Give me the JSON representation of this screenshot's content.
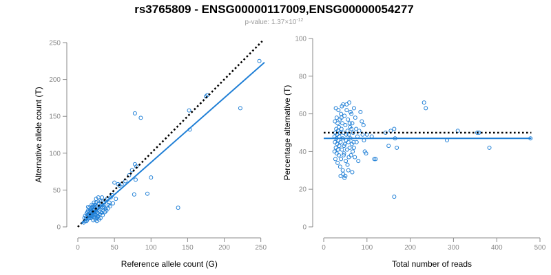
{
  "header": {
    "title": "rs3765809 - ENSG00000117009,ENSG00000054277",
    "subtitle_prefix": "p-value: 1.37×10",
    "subtitle_exponent": "-12"
  },
  "colors": {
    "points": "#1f7fd6",
    "fit_line": "#1f7fd6",
    "reference_line": "#000000",
    "axis": "#8a8a8a"
  },
  "chart_data": [
    {
      "type": "scatter",
      "title": "",
      "xlabel": "Reference allele count (G)",
      "ylabel": "Alternative allele count (T)",
      "xlim": [
        0,
        255
      ],
      "ylim": [
        0,
        250
      ],
      "xticks": [
        0,
        50,
        100,
        150,
        200,
        250
      ],
      "yticks": [
        0,
        50,
        100,
        150,
        200,
        250
      ],
      "grid": false,
      "reference_line": {
        "style": "dotted",
        "slope": 1,
        "intercept": 0,
        "x_range": [
          0,
          252
        ]
      },
      "fit_line": {
        "style": "solid",
        "slope": 0.875,
        "intercept": 0,
        "x_range": [
          5,
          255
        ]
      },
      "points": [
        [
          248,
          225
        ],
        [
          222,
          161
        ],
        [
          177,
          179
        ],
        [
          175,
          177
        ],
        [
          152,
          158
        ],
        [
          153,
          132
        ],
        [
          137,
          26
        ],
        [
          86,
          148
        ],
        [
          78,
          154
        ],
        [
          77,
          44
        ],
        [
          79,
          64
        ],
        [
          78,
          85
        ],
        [
          100,
          67
        ],
        [
          95,
          45
        ],
        [
          74,
          77
        ],
        [
          80,
          82
        ],
        [
          70,
          70
        ],
        [
          65,
          62
        ],
        [
          60,
          58
        ],
        [
          57,
          56
        ],
        [
          55,
          58
        ],
        [
          52,
          38
        ],
        [
          50,
          60
        ],
        [
          47,
          43
        ],
        [
          45,
          40
        ],
        [
          43,
          33
        ],
        [
          42,
          30
        ],
        [
          40,
          38
        ],
        [
          38,
          36
        ],
        [
          38,
          25
        ],
        [
          36,
          33
        ],
        [
          35,
          30
        ],
        [
          35,
          22
        ],
        [
          34,
          26
        ],
        [
          33,
          40
        ],
        [
          32,
          35
        ],
        [
          32,
          27
        ],
        [
          31,
          20
        ],
        [
          30,
          17
        ],
        [
          30,
          36
        ],
        [
          29,
          22
        ],
        [
          28,
          14
        ],
        [
          28,
          31
        ],
        [
          27,
          25
        ],
        [
          27,
          19
        ],
        [
          26,
          28
        ],
        [
          26,
          12
        ],
        [
          25,
          21
        ],
        [
          25,
          33
        ],
        [
          24,
          17
        ],
        [
          24,
          24
        ],
        [
          23,
          13
        ],
        [
          23,
          27
        ],
        [
          22,
          20
        ],
        [
          22,
          16
        ],
        [
          21,
          23
        ],
        [
          21,
          29
        ],
        [
          20,
          18
        ],
        [
          20,
          14
        ],
        [
          19,
          21
        ],
        [
          19,
          26
        ],
        [
          18,
          16
        ],
        [
          18,
          12
        ],
        [
          17,
          19
        ],
        [
          17,
          24
        ],
        [
          16,
          15
        ],
        [
          16,
          21
        ],
        [
          15,
          18
        ],
        [
          15,
          12
        ],
        [
          14,
          22
        ],
        [
          14,
          16
        ],
        [
          13,
          10
        ],
        [
          13,
          20
        ],
        [
          12,
          14
        ],
        [
          12,
          18
        ],
        [
          11,
          11
        ],
        [
          10,
          15
        ],
        [
          10,
          8
        ],
        [
          9,
          12
        ],
        [
          8,
          6
        ],
        [
          22,
          33
        ],
        [
          25,
          38
        ],
        [
          28,
          40
        ],
        [
          19,
          30
        ],
        [
          16,
          26
        ],
        [
          31,
          12
        ],
        [
          34,
          16
        ],
        [
          37,
          20
        ],
        [
          41,
          25
        ],
        [
          44,
          28
        ],
        [
          48,
          32
        ],
        [
          29,
          10
        ],
        [
          26,
          8
        ],
        [
          23,
          30
        ],
        [
          20,
          27
        ],
        [
          18,
          24
        ],
        [
          24,
          10
        ],
        [
          27,
          15
        ],
        [
          30,
          28
        ],
        [
          33,
          19
        ],
        [
          36,
          27
        ],
        [
          39,
          22
        ],
        [
          21,
          9
        ],
        [
          17,
          13
        ],
        [
          14,
          27
        ],
        [
          12,
          8
        ],
        [
          22,
          24
        ],
        [
          25,
          16
        ],
        [
          19,
          15
        ],
        [
          23,
          20
        ]
      ]
    },
    {
      "type": "scatter",
      "title": "",
      "xlabel": "Total number of reads",
      "ylabel": "Percentage alternative (T)",
      "xlim": [
        0,
        500
      ],
      "ylim": [
        0,
        100
      ],
      "xticks": [
        0,
        100,
        200,
        300,
        400,
        500
      ],
      "yticks": [
        0,
        20,
        40,
        60,
        80,
        100
      ],
      "grid": false,
      "reference_line": {
        "style": "dotted",
        "y": 50,
        "x_range": [
          0,
          480
        ]
      },
      "fit_line": {
        "style": "solid",
        "y": 47,
        "x_range": [
          0,
          480
        ]
      },
      "points": [
        [
          478,
          47
        ],
        [
          383,
          42
        ],
        [
          359,
          50
        ],
        [
          355,
          50
        ],
        [
          310,
          51
        ],
        [
          285,
          46
        ],
        [
          236,
          63
        ],
        [
          232,
          66
        ],
        [
          169,
          42
        ],
        [
          165,
          47
        ],
        [
          163,
          52
        ],
        [
          163,
          16
        ],
        [
          155,
          51
        ],
        [
          150,
          43
        ],
        [
          143,
          50
        ],
        [
          120,
          36
        ],
        [
          117,
          36
        ],
        [
          111,
          48
        ],
        [
          100,
          49
        ],
        [
          98,
          39
        ],
        [
          95,
          40
        ],
        [
          93,
          46
        ],
        [
          92,
          54
        ],
        [
          90,
          49
        ],
        [
          88,
          56
        ],
        [
          85,
          61
        ],
        [
          82,
          51
        ],
        [
          80,
          35
        ],
        [
          78,
          48
        ],
        [
          76,
          45
        ],
        [
          75,
          52
        ],
        [
          73,
          58
        ],
        [
          72,
          37
        ],
        [
          70,
          63
        ],
        [
          69,
          45
        ],
        [
          68,
          50
        ],
        [
          67,
          40
        ],
        [
          66,
          55
        ],
        [
          65,
          44
        ],
        [
          64,
          60
        ],
        [
          63,
          38
        ],
        [
          62,
          47
        ],
        [
          61,
          53
        ],
        [
          60,
          42
        ],
        [
          59,
          66
        ],
        [
          58,
          49
        ],
        [
          57,
          30
        ],
        [
          56,
          57
        ],
        [
          55,
          51
        ],
        [
          54,
          41
        ],
        [
          53,
          62
        ],
        [
          52,
          46
        ],
        [
          51,
          35
        ],
        [
          50,
          54
        ],
        [
          49,
          44
        ],
        [
          48,
          59
        ],
        [
          47,
          39
        ],
        [
          46,
          50
        ],
        [
          45,
          65
        ],
        [
          45,
          28
        ],
        [
          44,
          47
        ],
        [
          43,
          55
        ],
        [
          42,
          41
        ],
        [
          41,
          52
        ],
        [
          40,
          36
        ],
        [
          40,
          60
        ],
        [
          39,
          45
        ],
        [
          38,
          50
        ],
        [
          38,
          32
        ],
        [
          37,
          57
        ],
        [
          36,
          43
        ],
        [
          36,
          48
        ],
        [
          35,
          53
        ],
        [
          35,
          38
        ],
        [
          34,
          62
        ],
        [
          34,
          46
        ],
        [
          33,
          51
        ],
        [
          33,
          41
        ],
        [
          32,
          55
        ],
        [
          32,
          34
        ],
        [
          31,
          49
        ],
        [
          31,
          44
        ],
        [
          30,
          58
        ],
        [
          30,
          39
        ],
        [
          29,
          52
        ],
        [
          29,
          47
        ],
        [
          28,
          63
        ],
        [
          28,
          42
        ],
        [
          27,
          50
        ],
        [
          27,
          36
        ],
        [
          26,
          56
        ],
        [
          26,
          45
        ],
        [
          25,
          48
        ],
        [
          25,
          40
        ],
        [
          48,
          26
        ],
        [
          50,
          27
        ],
        [
          55,
          33
        ],
        [
          44,
          30
        ],
        [
          66,
          29
        ],
        [
          70,
          42
        ],
        [
          58,
          37
        ],
        [
          62,
          61
        ],
        [
          53,
          65
        ],
        [
          47,
          43
        ],
        [
          41,
          58
        ],
        [
          39,
          27
        ],
        [
          52,
          49
        ],
        [
          60,
          55
        ],
        [
          57,
          45
        ],
        [
          64,
          52
        ],
        [
          46,
          38
        ],
        [
          42,
          64
        ]
      ]
    }
  ]
}
